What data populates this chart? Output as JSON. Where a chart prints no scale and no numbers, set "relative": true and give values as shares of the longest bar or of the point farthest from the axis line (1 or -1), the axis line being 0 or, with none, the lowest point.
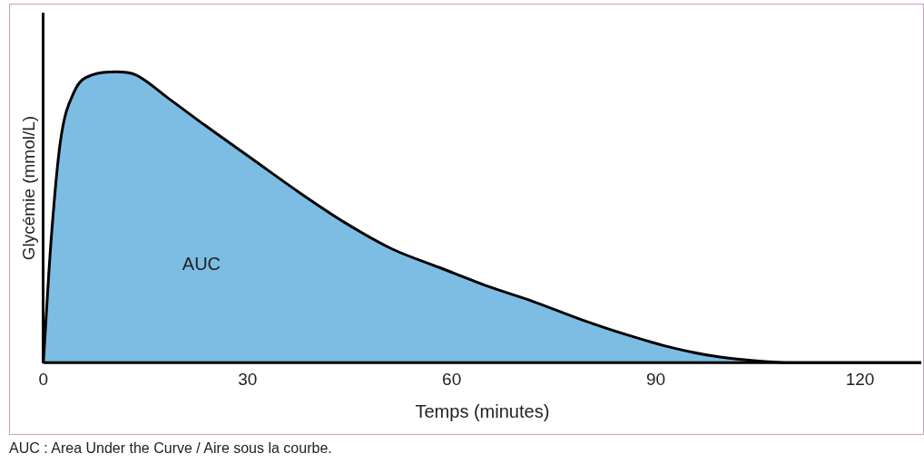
{
  "chart_data": {
    "type": "area",
    "relative": true,
    "xlabel": "Temps (minutes)",
    "ylabel": "Glycémie (mmol/L)",
    "x": [
      0,
      1.1,
      2.5,
      4.5,
      7.3,
      10.7,
      13.5,
      18.3,
      23.8,
      30.7,
      37.6,
      44.4,
      51.3,
      58.2,
      65,
      72,
      78.8,
      85.7,
      92.6,
      99.4,
      106,
      110,
      129
    ],
    "series": [
      {
        "color": "#7dbde3",
        "values": [
          0,
          0.41,
          0.76,
          0.93,
          0.99,
          1,
          0.99,
          0.91,
          0.815,
          0.7,
          0.585,
          0.48,
          0.39,
          0.327,
          0.265,
          0.21,
          0.15,
          0.096,
          0.05,
          0.019,
          0.004,
          0,
          0
        ]
      }
    ],
    "xlim": [
      0,
      129
    ],
    "xticks": [
      0,
      30,
      60,
      90,
      120
    ],
    "grid": false,
    "legend": false,
    "marker": "none",
    "line_style": "solid",
    "annotations": [
      "AUC",
      "AUC : Area Under the Curve / Aire sous la courbe."
    ]
  }
}
